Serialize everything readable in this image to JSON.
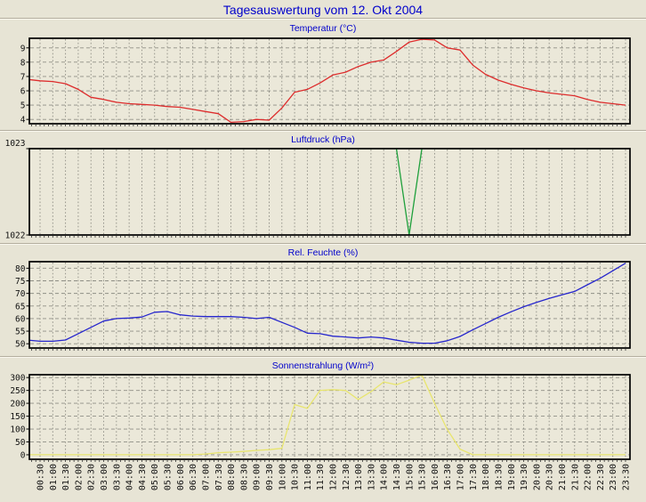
{
  "page": {
    "title": "Tagesauswertung vom 12. Okt 2004"
  },
  "colors": {
    "title_text": "#0000cc",
    "page_bg": "#e7e4d5",
    "plot_bg": "#ebe8d9",
    "grid": "#8f8e85",
    "axis_border": "#000000",
    "tick_label": "#111111",
    "temperature_line": "#dd2c2c",
    "pressure_line": "#1fa03c",
    "humidity_line": "#2626cd",
    "radiation_line": "#e8e56e"
  },
  "x_axis": {
    "tick_labels": [
      "00:30",
      "01:00",
      "01:30",
      "02:00",
      "02:30",
      "03:00",
      "03:30",
      "04:00",
      "04:30",
      "05:00",
      "05:30",
      "06:00",
      "06:30",
      "07:00",
      "07:30",
      "08:00",
      "08:30",
      "09:00",
      "09:30",
      "10:00",
      "10:30",
      "11:00",
      "11:30",
      "12:00",
      "12:30",
      "13:00",
      "13:30",
      "14:00",
      "14:30",
      "15:00",
      "15:30",
      "16:00",
      "16:30",
      "17:00",
      "17:30",
      "18:00",
      "18:30",
      "19:00",
      "19:30",
      "20:00",
      "20:30",
      "21:00",
      "21:30",
      "22:00",
      "22:30",
      "23:00",
      "23:30"
    ]
  },
  "x_times": [
    "00:00",
    "00:30",
    "01:00",
    "01:30",
    "02:00",
    "02:30",
    "03:00",
    "03:30",
    "04:00",
    "04:30",
    "05:00",
    "05:30",
    "06:00",
    "06:30",
    "07:00",
    "07:30",
    "08:00",
    "08:30",
    "09:00",
    "09:30",
    "10:00",
    "10:30",
    "11:00",
    "11:30",
    "12:00",
    "12:30",
    "13:00",
    "13:30",
    "14:00",
    "14:30",
    "15:00",
    "15:30",
    "16:00",
    "16:30",
    "17:00",
    "17:30",
    "18:00",
    "18:30",
    "19:00",
    "19:30",
    "20:00",
    "20:30",
    "21:00",
    "21:30",
    "22:00",
    "22:30",
    "23:00",
    "23:30"
  ],
  "chart_data": [
    {
      "type": "line",
      "title": "Temperatur (°C)",
      "color_key": "temperature_line",
      "ylim": [
        3.7,
        9.67
      ],
      "yticks": [
        4,
        5,
        6,
        7,
        8,
        9
      ],
      "values": [
        6.8,
        6.7,
        6.65,
        6.5,
        6.1,
        5.55,
        5.4,
        5.2,
        5.1,
        5.05,
        5.0,
        4.9,
        4.85,
        4.7,
        4.55,
        4.4,
        3.8,
        3.85,
        4.0,
        3.95,
        4.8,
        5.9,
        6.1,
        6.55,
        7.1,
        7.3,
        7.7,
        8.0,
        8.15,
        8.75,
        9.4,
        9.6,
        9.55,
        9.0,
        8.85,
        7.8,
        7.15,
        6.75,
        6.45,
        6.2,
        6.0,
        5.85,
        5.75,
        5.65,
        5.4,
        5.2,
        5.1,
        5.0
      ]
    },
    {
      "type": "line",
      "title": "Luftdruck (hPa)",
      "color_key": "pressure_line",
      "ylim": [
        1022,
        1023
      ],
      "yticks": [
        1022,
        1023
      ],
      "values": [
        1023,
        1023,
        1023,
        1023,
        1023,
        1023,
        1023,
        1023,
        1023,
        1023,
        1023,
        1023,
        1023,
        1023,
        1023,
        1023,
        1023,
        1023,
        1023,
        1023,
        1023,
        1023,
        1023,
        1023,
        1023,
        1023,
        1023,
        1023,
        1023,
        1023,
        1022,
        1023,
        1023,
        1023,
        1023,
        1023,
        1023,
        1023,
        1023,
        1023,
        1023,
        1023,
        1023,
        1023,
        1023,
        1023,
        1023,
        1023
      ]
    },
    {
      "type": "line",
      "title": "Rel. Feuchte (%)",
      "color_key": "humidity_line",
      "ylim": [
        48.3,
        82.6
      ],
      "yticks": [
        50,
        55,
        60,
        65,
        70,
        75,
        80
      ],
      "values": [
        51.5,
        51,
        51,
        51.5,
        54,
        56.5,
        59,
        60,
        60.2,
        60.6,
        62.5,
        62.8,
        61.5,
        61,
        60.8,
        60.8,
        60.8,
        60.5,
        60,
        60.5,
        58.5,
        56.5,
        54.2,
        54,
        53,
        52.7,
        52.3,
        52.7,
        52.3,
        51.4,
        50.6,
        50.2,
        50.2,
        51.2,
        52.9,
        55.5,
        58,
        60.5,
        62.7,
        64.7,
        66.4,
        68,
        69.4,
        70.8,
        73.4,
        76,
        79,
        82
      ]
    },
    {
      "type": "line",
      "title": "Sonnenstrahlung (W/m²)",
      "color_key": "radiation_line",
      "ylim": [
        -17.5,
        311
      ],
      "yticks": [
        0,
        50,
        100,
        150,
        200,
        250,
        300
      ],
      "values": [
        0,
        0,
        0,
        0,
        0,
        0,
        0,
        0,
        0,
        0,
        0,
        0,
        0,
        0,
        3,
        8,
        10,
        13,
        17,
        20,
        25,
        195,
        180,
        250,
        253,
        250,
        215,
        245,
        283,
        272,
        290,
        310,
        200,
        98,
        22,
        0,
        0,
        0,
        0,
        0,
        0,
        0,
        0,
        0,
        0,
        0,
        0,
        0
      ]
    }
  ]
}
